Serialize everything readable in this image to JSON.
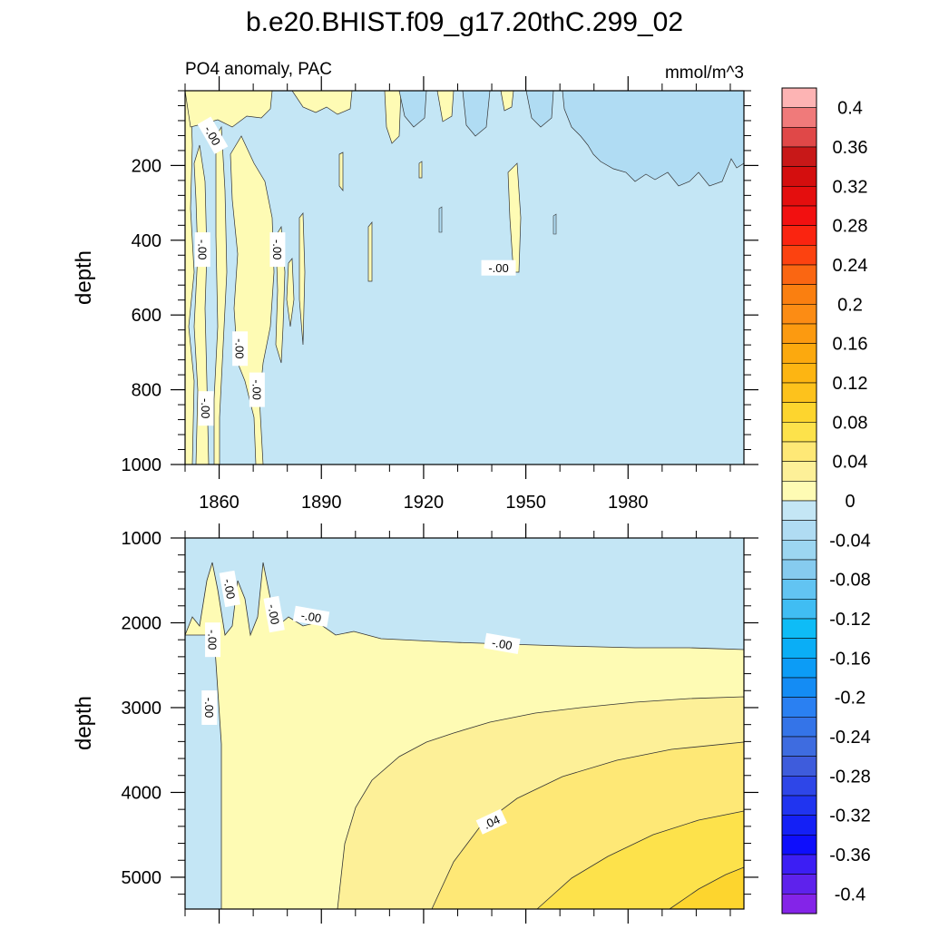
{
  "title": "b.e20.BHIST.f09_g17.20thC.299_02",
  "left_string": "PO4 anomaly, PAC",
  "right_string": "mmol/m^3",
  "colors": {
    "fill_neg_level1": "#c4e6f5",
    "fill_neg_level2": "#b0dcf3",
    "fill_pos_level1": "#fefbb4",
    "fill_pos_level2": "#fdf098",
    "fill_pos_level3": "#fee876",
    "fill_pos_level4": "#fde24b",
    "fill_pos_level5": "#fdd52e"
  },
  "chart_data": [
    {
      "type": "heatmap",
      "name": "upper-panel",
      "ylabel": "depth",
      "y_axis": "reversed",
      "x_range": [
        1850,
        2014
      ],
      "y_range": [
        0,
        1000
      ],
      "x_ticks": [
        1860,
        1890,
        1920,
        1950,
        1980
      ],
      "y_ticks": [
        200,
        400,
        600,
        800,
        1000
      ],
      "contour_labels": [
        {
          "text": "-.00",
          "x": 1858,
          "y": 120,
          "angle": 60
        },
        {
          "text": "-.00",
          "x": 1855,
          "y": 425,
          "angle": 90
        },
        {
          "text": "-.00",
          "x": 1877,
          "y": 425,
          "angle": 90
        },
        {
          "text": "-.00",
          "x": 1942,
          "y": 475,
          "angle": 0
        },
        {
          "text": "-.00",
          "x": 1866,
          "y": 690,
          "angle": 90
        },
        {
          "text": "-.00",
          "x": 1871,
          "y": 800,
          "angle": 90
        },
        {
          "text": "-.00",
          "x": 1856,
          "y": 850,
          "angle": 90
        }
      ]
    },
    {
      "type": "heatmap",
      "name": "lower-panel",
      "ylabel": "depth",
      "y_axis": "reversed",
      "x_range": [
        1850,
        2014
      ],
      "y_range": [
        1000,
        5375
      ],
      "x_ticks": [
        1860,
        1890,
        1920,
        1950,
        1980
      ],
      "y_ticks": [
        1000,
        2000,
        3000,
        4000,
        5000
      ],
      "contour_labels": [
        {
          "text": "-.00",
          "x": 1863,
          "y": 1600,
          "angle": 80
        },
        {
          "text": "-.00",
          "x": 1876,
          "y": 1900,
          "angle": 80
        },
        {
          "text": "-.00",
          "x": 1887,
          "y": 1930,
          "angle": 10
        },
        {
          "text": "-.00",
          "x": 1858,
          "y": 2200,
          "angle": 90
        },
        {
          "text": "-.00",
          "x": 1943,
          "y": 2250,
          "angle": 10
        },
        {
          "text": "-.00",
          "x": 1857,
          "y": 3000,
          "angle": 90
        },
        {
          "text": ".04",
          "x": 1940,
          "y": 4350,
          "angle": -25
        }
      ]
    }
  ],
  "colorbar": {
    "labels": [
      "0.4",
      "0.36",
      "0.32",
      "0.28",
      "0.24",
      "0.2",
      "0.16",
      "0.12",
      "0.08",
      "0.04",
      "0",
      "-0.04",
      "-0.08",
      "-0.12",
      "-0.16",
      "-0.2",
      "-0.24",
      "-0.28",
      "-0.32",
      "-0.36",
      "-0.4"
    ],
    "colors": [
      "#fdb4b4",
      "#f07a7a",
      "#e04848",
      "#c81818",
      "#d40e0e",
      "#e40e0e",
      "#f21010",
      "#fa2410",
      "#fc4210",
      "#fa6612",
      "#fa7f10",
      "#fc8c14",
      "#fc9a10",
      "#fca90e",
      "#fdb512",
      "#fdc21c",
      "#fdd52e",
      "#fde24b",
      "#fee876",
      "#fdf098",
      "#fefbb4",
      "#c4e6f5",
      "#b0dcf3",
      "#9cd6f1",
      "#86cbef",
      "#62c4f2",
      "#40bdf3",
      "#0ebcf6",
      "#0aaef6",
      "#0c9cf6",
      "#148cf4",
      "#2a80f2",
      "#3474e8",
      "#3e6ce0",
      "#3e5cdc",
      "#2e46e8",
      "#2034f0",
      "#1420f6",
      "#0e0efc",
      "#3c1ef4",
      "#5e22ec",
      "#8424e8"
    ]
  }
}
